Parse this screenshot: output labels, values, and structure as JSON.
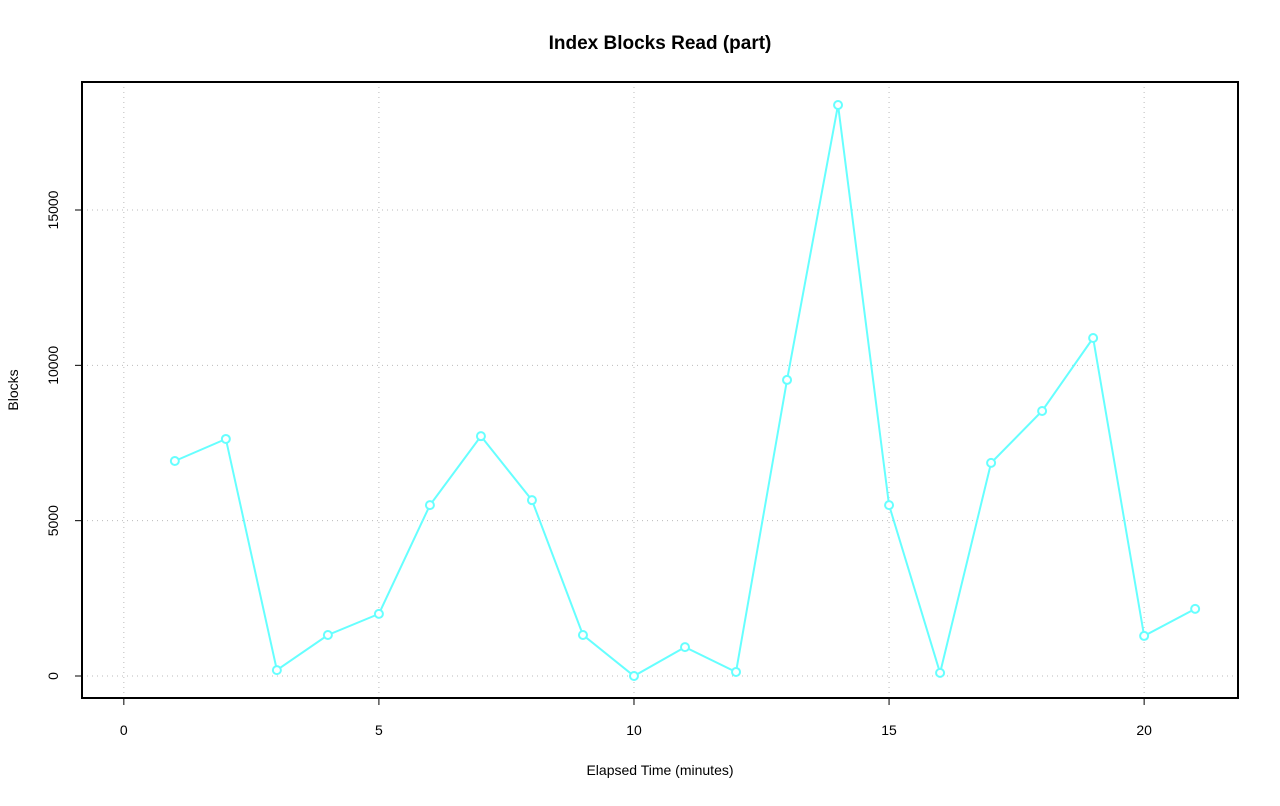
{
  "chart_data": {
    "type": "line",
    "title": "Index Blocks Read (part)",
    "x_label": "Elapsed Time (minutes)",
    "y_label": "Blocks",
    "x": [
      1,
      2,
      3,
      4,
      5,
      6,
      7,
      8,
      9,
      10,
      11,
      12,
      13,
      14,
      15,
      16,
      17,
      18,
      19,
      20,
      21
    ],
    "series": [
      {
        "name": "Blocks",
        "color": "#66ffff",
        "values": [
          6920,
          7630,
          190,
          1320,
          2000,
          5500,
          7720,
          5660,
          1320,
          0,
          930,
          130,
          9530,
          18380,
          5500,
          100,
          6860,
          8530,
          10880,
          1290,
          2160
        ]
      }
    ],
    "xlim": [
      -0.82,
      21.84
    ],
    "xticks": [
      0,
      5,
      10,
      15,
      20
    ],
    "ylim": [
      -708,
      19120
    ],
    "yticks": [
      0,
      5000,
      10000,
      15000
    ],
    "grid": true
  }
}
